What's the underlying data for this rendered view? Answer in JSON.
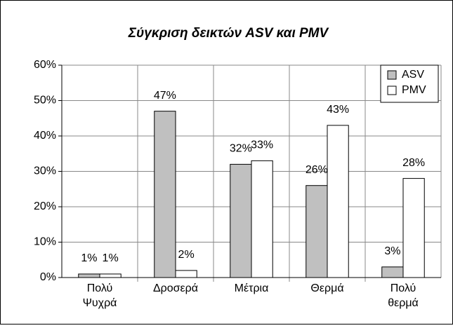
{
  "chart_data": {
    "type": "bar",
    "title": "Σύγκριση δεικτών ASV και PMV",
    "categories": [
      "Πολύ Ψυχρά",
      "Δροσερά",
      "Μέτρια",
      "Θερμά",
      "Πολύ θερμά"
    ],
    "series": [
      {
        "name": "ASV",
        "color": "#c0c0c0",
        "values": [
          1,
          47,
          32,
          26,
          3
        ],
        "value_labels": [
          "1%",
          "47%",
          "32%",
          "26%",
          "3%"
        ]
      },
      {
        "name": "PMV",
        "color": "#ffffff",
        "values": [
          1,
          2,
          33,
          43,
          28
        ],
        "value_labels": [
          "1%",
          "2%",
          "33%",
          "43%",
          "28%"
        ]
      }
    ],
    "ylim": [
      0,
      60
    ],
    "yticks": [
      {
        "value": 0,
        "label": "0%"
      },
      {
        "value": 10,
        "label": "10%"
      },
      {
        "value": 20,
        "label": "20%"
      },
      {
        "value": 30,
        "label": "30%"
      },
      {
        "value": 40,
        "label": "40%"
      },
      {
        "value": 50,
        "label": "50%"
      },
      {
        "value": 60,
        "label": "60%"
      }
    ],
    "grid": true,
    "legend": "top-right"
  }
}
